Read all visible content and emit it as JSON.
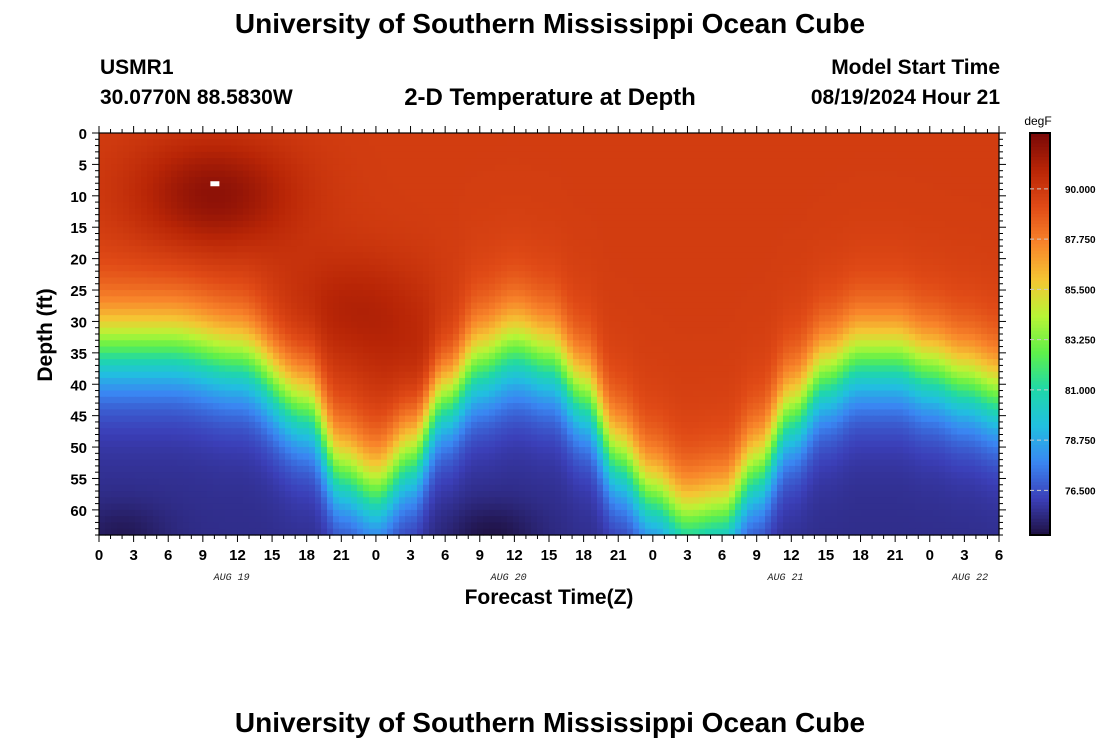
{
  "header": {
    "title": "University of Southern Mississippi Ocean Cube",
    "station": "USMR1",
    "coordinates": "30.0770N  88.5830W",
    "subtitle": "2-D Temperature at Depth",
    "model_start_label": "Model Start Time",
    "model_start_value": "08/19/2024 Hour 21"
  },
  "footer": {
    "title": "University of Southern Mississippi Ocean Cube"
  },
  "chart_data": {
    "type": "heatmap",
    "title": "2-D Temperature at Depth",
    "xlabel": "Forecast Time(Z)",
    "ylabel": "Depth (ft)",
    "x_range_hours": [
      0,
      78
    ],
    "y_range_ft": [
      0,
      64
    ],
    "x_tick_hours": [
      0,
      3,
      6,
      9,
      12,
      15,
      18,
      21,
      24,
      27,
      30,
      33,
      36,
      39,
      42,
      45,
      48,
      51,
      54,
      57,
      60,
      63,
      66,
      69,
      72,
      75,
      78
    ],
    "x_tick_labels": [
      "0",
      "3",
      "6",
      "9",
      "12",
      "15",
      "18",
      "21",
      "0",
      "3",
      "6",
      "9",
      "12",
      "15",
      "18",
      "21",
      "0",
      "3",
      "6",
      "9",
      "12",
      "15",
      "18",
      "21",
      "0",
      "3",
      "6"
    ],
    "date_labels": [
      {
        "label": "AUG 19",
        "hour": 11.5
      },
      {
        "label": "AUG 20",
        "hour": 35.5
      },
      {
        "label": "AUG 21",
        "hour": 59.5
      },
      {
        "label": "AUG 22",
        "hour": 75.5
      }
    ],
    "y_ticks": [
      0,
      5,
      10,
      15,
      20,
      25,
      30,
      35,
      40,
      45,
      50,
      55,
      60
    ],
    "colorbar": {
      "unit": "degF",
      "range": [
        74.5,
        92.5
      ],
      "ticks": [
        "76.500",
        "78.750",
        "81.000",
        "83.250",
        "85.500",
        "87.750",
        "90.000"
      ],
      "tick_values": [
        76.5,
        78.75,
        81.0,
        83.25,
        85.5,
        87.75,
        90.0
      ],
      "colors": [
        "#1e1040",
        "#3b3fb8",
        "#3a86f2",
        "#21bfe0",
        "#1fd8a8",
        "#5ef04a",
        "#b8f535",
        "#f5c533",
        "#f8842a",
        "#e04a16",
        "#b82506",
        "#780807"
      ]
    },
    "surface_temperature_degF": 89.8,
    "deep_temperature_degF": 75.5,
    "thermocline_depth_ft": [
      {
        "hour": 0,
        "depth": 34
      },
      {
        "hour": 6,
        "depth": 34
      },
      {
        "hour": 12,
        "depth": 36
      },
      {
        "hour": 18,
        "depth": 44
      },
      {
        "hour": 21,
        "depth": 54
      },
      {
        "hour": 24,
        "depth": 57
      },
      {
        "hour": 27,
        "depth": 52
      },
      {
        "hour": 30,
        "depth": 42
      },
      {
        "hour": 33,
        "depth": 36
      },
      {
        "hour": 36,
        "depth": 34
      },
      {
        "hour": 39,
        "depth": 36
      },
      {
        "hour": 42,
        "depth": 42
      },
      {
        "hour": 45,
        "depth": 52
      },
      {
        "hour": 48,
        "depth": 58
      },
      {
        "hour": 51,
        "depth": 62
      },
      {
        "hour": 54,
        "depth": 61
      },
      {
        "hour": 57,
        "depth": 54
      },
      {
        "hour": 60,
        "depth": 45
      },
      {
        "hour": 63,
        "depth": 39
      },
      {
        "hour": 66,
        "depth": 36
      },
      {
        "hour": 69,
        "depth": 36
      },
      {
        "hour": 72,
        "depth": 38
      },
      {
        "hour": 75,
        "depth": 40
      },
      {
        "hour": 78,
        "depth": 42
      }
    ],
    "warm_maxima": [
      {
        "hour": 10,
        "depth": 10,
        "temp": 92.0
      },
      {
        "hour": 22,
        "depth": 28,
        "temp": 91.0
      },
      {
        "hour": 30,
        "depth": 38,
        "temp": 90.8
      }
    ],
    "cold_minima": [
      {
        "hour": 2,
        "depth": 64,
        "temp": 74.8
      },
      {
        "hour": 34,
        "depth": 64,
        "temp": 74.6
      }
    ]
  }
}
